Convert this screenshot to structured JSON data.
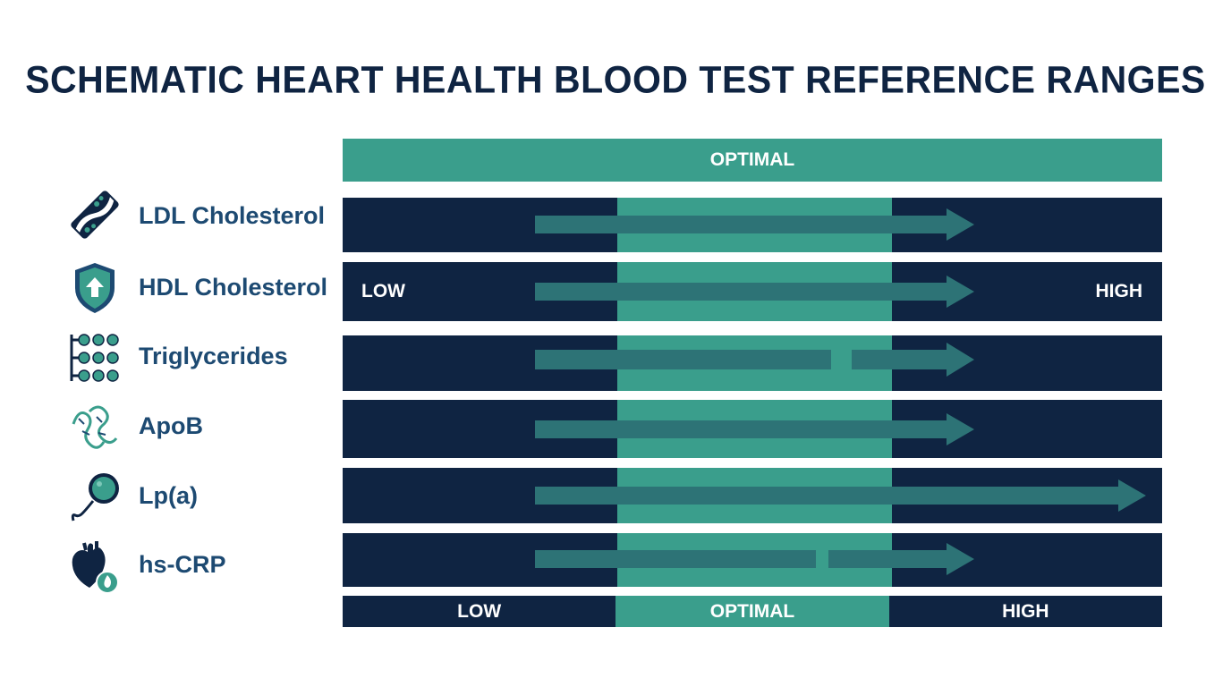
{
  "title": "SCHEMATIC HEART HEALTH BLOOD TEST REFERENCE RANGES",
  "top_band": "OPTIMAL",
  "colors": {
    "navy": "#0f2442",
    "teal": "#3a9e8c",
    "arrow": "#2d7376",
    "label": "#1d4a72"
  },
  "rows": [
    {
      "label": "LDL Cholesterol",
      "icon": "blood-vessel-icon"
    },
    {
      "label": "HDL Cholesterol",
      "icon": "shield-up-arrow-icon",
      "left_text": "LOW",
      "right_text": "HIGH"
    },
    {
      "label": "Triglycerides",
      "icon": "molecule-chain-icon"
    },
    {
      "label": "ApoB",
      "icon": "protein-strand-icon"
    },
    {
      "label": "Lp(a)",
      "icon": "lipoprotein-particle-icon"
    },
    {
      "label": "hs-CRP",
      "icon": "heart-inflammation-icon"
    }
  ],
  "axis": {
    "low": "LOW",
    "optimal": "OPTIMAL",
    "high": "HIGH"
  }
}
